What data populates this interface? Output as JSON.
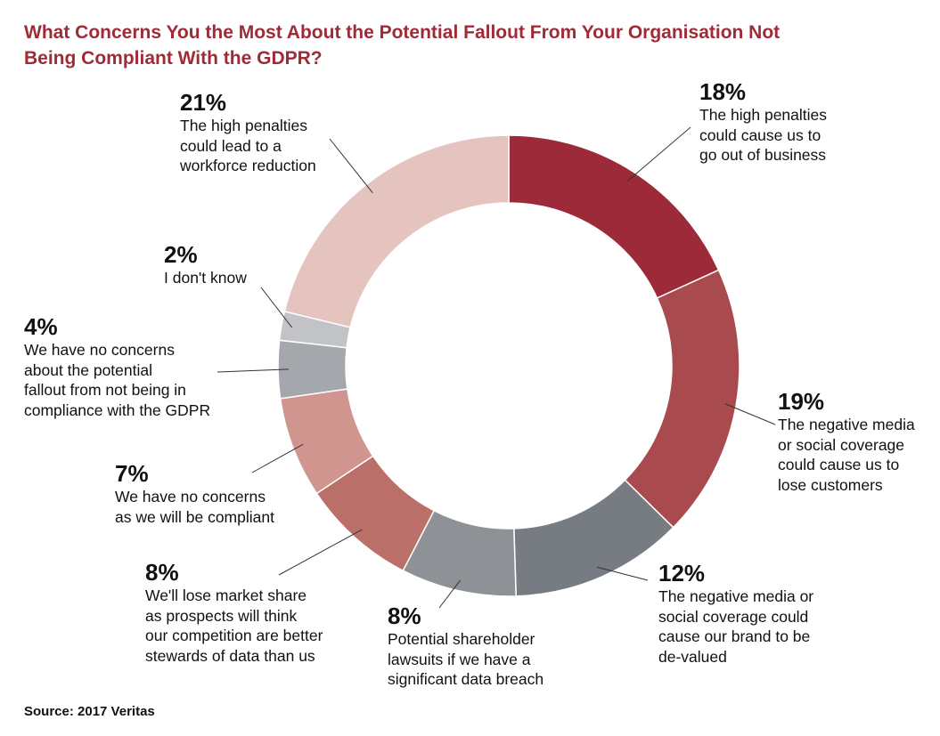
{
  "title_lines": [
    "What Concerns You the Most About the Potential Fallout From Your Organisation Not",
    "Being Compliant With the GDPR?"
  ],
  "source": "Source: 2017 Veritas",
  "colors": {
    "title": "#9e2b36",
    "leader": "#333333"
  },
  "chart_data": {
    "type": "pie",
    "donut": true,
    "title": "What Concerns You the Most About the Potential Fallout From Your Organisation Not Being Compliant With the GDPR?",
    "slices": [
      {
        "pct_label": "18%",
        "value": 18,
        "desc": "The high penalties\ncould cause us to\ngo out of business",
        "color": "#9c2a38"
      },
      {
        "pct_label": "19%",
        "value": 19,
        "desc": "The negative media\nor social coverage\ncould cause us to\nlose customers",
        "color": "#a84a4e"
      },
      {
        "pct_label": "12%",
        "value": 12,
        "desc": "The negative media or\nsocial coverage could\ncause our brand to be\nde-valued",
        "color": "#767c81"
      },
      {
        "pct_label": "8%",
        "value": 8,
        "desc": "Potential shareholder\nlawsuits if we have a\nsignificant data breach",
        "color": "#8e9297"
      },
      {
        "pct_label": "8%",
        "value": 8,
        "desc": "We'll lose market share\nas prospects will think\nour competition are better\nstewards of data than us",
        "color": "#ba6f69"
      },
      {
        "pct_label": "7%",
        "value": 7,
        "desc": "We have no concerns\nas we will be compliant",
        "color": "#d1958f"
      },
      {
        "pct_label": "4%",
        "value": 4,
        "desc": "We have no concerns\nabout the potential\nfallout from not being in\ncompliance with the GDPR",
        "color": "#a4a7ab"
      },
      {
        "pct_label": "2%",
        "value": 2,
        "desc": "I don't know",
        "color": "#c2c3c6"
      },
      {
        "pct_label": "21%",
        "value": 21,
        "desc": "The high penalties\ncould lead to a\nworkforce reduction",
        "color": "#e5c4bf"
      }
    ]
  }
}
